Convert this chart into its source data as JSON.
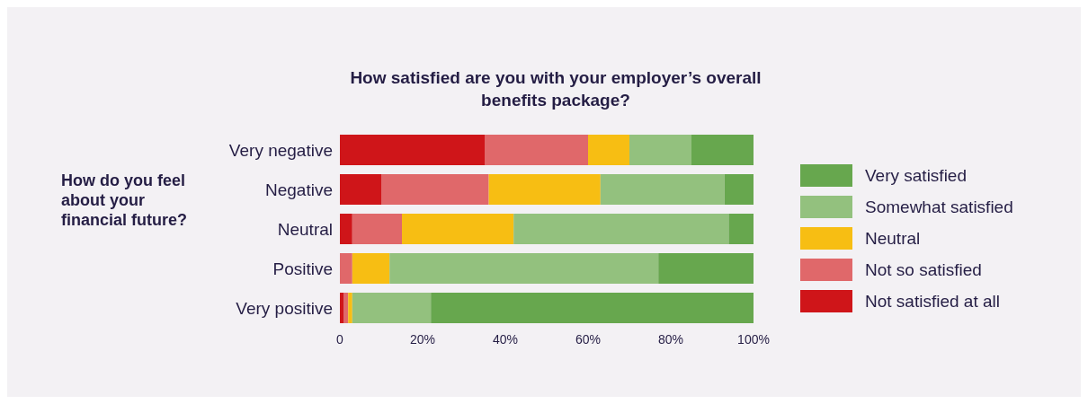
{
  "chart_data": {
    "type": "bar",
    "orientation": "horizontal",
    "stacked": true,
    "title": "How satisfied are you with your employer’s overall benefits package?",
    "ylabel": "How do you feel about your financial future?",
    "categories": [
      "Very negative",
      "Negative",
      "Neutral",
      "Positive",
      "Very positive"
    ],
    "series": [
      {
        "name": "Not satisfied at all",
        "color": "#cf1519",
        "values": [
          35,
          10,
          3,
          0,
          1
        ]
      },
      {
        "name": "Not so satisfied",
        "color": "#e0686a",
        "values": [
          25,
          26,
          12,
          3,
          1
        ]
      },
      {
        "name": "Neutral",
        "color": "#f7be13",
        "values": [
          10,
          27,
          27,
          9,
          1
        ]
      },
      {
        "name": "Somewhat satisfied",
        "color": "#93c17e",
        "values": [
          15,
          30,
          52,
          65,
          19
        ]
      },
      {
        "name": "Very satisfied",
        "color": "#67a74e",
        "values": [
          15,
          7,
          6,
          23,
          78
        ]
      }
    ],
    "xlim": [
      0,
      100
    ],
    "xticks": [
      0,
      {
        "value": 20,
        "label": "20%"
      },
      {
        "value": 40,
        "label": "40%"
      },
      {
        "value": 60,
        "label": "60%"
      },
      {
        "value": 80,
        "label": "80%"
      },
      {
        "value": 100,
        "label": "100%"
      }
    ],
    "grid": false,
    "legend": "right"
  }
}
